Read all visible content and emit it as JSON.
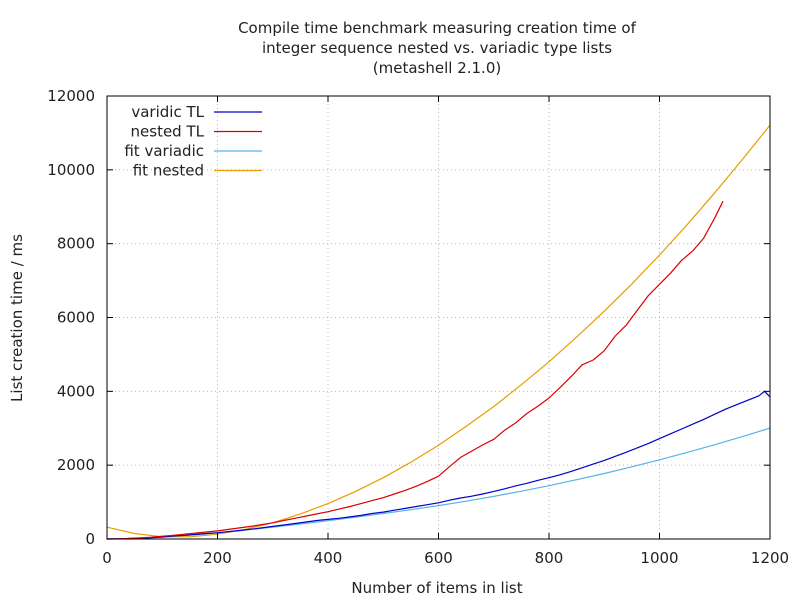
{
  "chart_data": {
    "type": "line",
    "title": [
      "Compile time benchmark measuring creation time of",
      "integer sequence nested vs. variadic type lists",
      "(metashell 2.1.0)"
    ],
    "xlabel": "Number of items in list",
    "ylabel": "List creation time / ms",
    "xlim": [
      0,
      1200
    ],
    "ylim": [
      0,
      12000
    ],
    "xticks": [
      "0",
      "200",
      "400",
      "600",
      "800",
      "1000",
      "1200"
    ],
    "yticks": [
      "0",
      "2000",
      "4000",
      "6000",
      "8000",
      "10000",
      "12000"
    ],
    "grid": true,
    "legend_position": "top-left",
    "series": [
      {
        "name": "varidic TL",
        "color": "#0000cc",
        "x": [
          0,
          20,
          40,
          60,
          80,
          100,
          120,
          140,
          160,
          180,
          200,
          220,
          240,
          260,
          280,
          300,
          320,
          340,
          360,
          380,
          400,
          420,
          440,
          460,
          480,
          500,
          520,
          540,
          560,
          580,
          600,
          620,
          640,
          660,
          680,
          700,
          720,
          740,
          760,
          780,
          800,
          820,
          840,
          860,
          880,
          900,
          920,
          940,
          960,
          980,
          1000,
          1020,
          1040,
          1060,
          1080,
          1100,
          1120,
          1140,
          1160,
          1180,
          1190,
          1200
        ],
        "y": [
          0,
          3,
          10,
          20,
          35,
          55,
          80,
          100,
          125,
          150,
          170,
          200,
          230,
          265,
          300,
          340,
          380,
          420,
          460,
          500,
          530,
          560,
          600,
          640,
          690,
          730,
          780,
          830,
          880,
          930,
          980,
          1050,
          1110,
          1160,
          1220,
          1290,
          1360,
          1440,
          1510,
          1590,
          1660,
          1740,
          1830,
          1930,
          2030,
          2130,
          2240,
          2350,
          2470,
          2590,
          2720,
          2850,
          2980,
          3110,
          3240,
          3380,
          3520,
          3640,
          3760,
          3880,
          4000,
          3850
        ]
      },
      {
        "name": "nested TL",
        "color": "#dd0000",
        "x": [
          0,
          20,
          40,
          60,
          80,
          100,
          120,
          140,
          160,
          180,
          200,
          220,
          240,
          260,
          280,
          300,
          320,
          340,
          360,
          380,
          400,
          420,
          440,
          460,
          480,
          500,
          520,
          540,
          560,
          580,
          600,
          620,
          640,
          660,
          680,
          700,
          720,
          740,
          760,
          780,
          800,
          820,
          840,
          860,
          880,
          900,
          920,
          940,
          960,
          980,
          1000,
          1020,
          1040,
          1060,
          1080,
          1100,
          1115
        ],
        "y": [
          0,
          5,
          15,
          30,
          50,
          75,
          100,
          130,
          160,
          190,
          220,
          260,
          300,
          340,
          390,
          440,
          500,
          560,
          620,
          680,
          740,
          810,
          880,
          960,
          1040,
          1120,
          1220,
          1320,
          1430,
          1560,
          1700,
          1960,
          2210,
          2380,
          2550,
          2700,
          2950,
          3150,
          3400,
          3600,
          3820,
          4100,
          4400,
          4720,
          4850,
          5100,
          5500,
          5800,
          6200,
          6600,
          6900,
          7200,
          7550,
          7800,
          8150,
          8700,
          9150
        ]
      },
      {
        "name": "fit variadic",
        "color": "#56b4e9",
        "x": [
          0,
          50,
          100,
          150,
          200,
          250,
          300,
          350,
          400,
          450,
          500,
          550,
          600,
          650,
          700,
          750,
          800,
          850,
          900,
          950,
          1000,
          1050,
          1100,
          1150,
          1200
        ],
        "y": [
          0,
          15,
          50,
          100,
          165,
          240,
          320,
          405,
          495,
          590,
          690,
          795,
          905,
          1025,
          1155,
          1295,
          1445,
          1605,
          1775,
          1955,
          2145,
          2345,
          2555,
          2775,
          3005
        ]
      },
      {
        "name": "fit nested",
        "color": "#e69f00",
        "x": [
          0,
          50,
          100,
          150,
          200,
          250,
          300,
          350,
          400,
          450,
          500,
          550,
          600,
          650,
          700,
          750,
          800,
          850,
          900,
          950,
          1000,
          1050,
          1100,
          1150,
          1200
        ],
        "y": [
          320,
          150,
          60,
          60,
          130,
          260,
          440,
          680,
          960,
          1290,
          1660,
          2080,
          2540,
          3050,
          3590,
          4180,
          4800,
          5470,
          6170,
          6910,
          7690,
          8510,
          9380,
          10280,
          11210
        ]
      }
    ]
  }
}
